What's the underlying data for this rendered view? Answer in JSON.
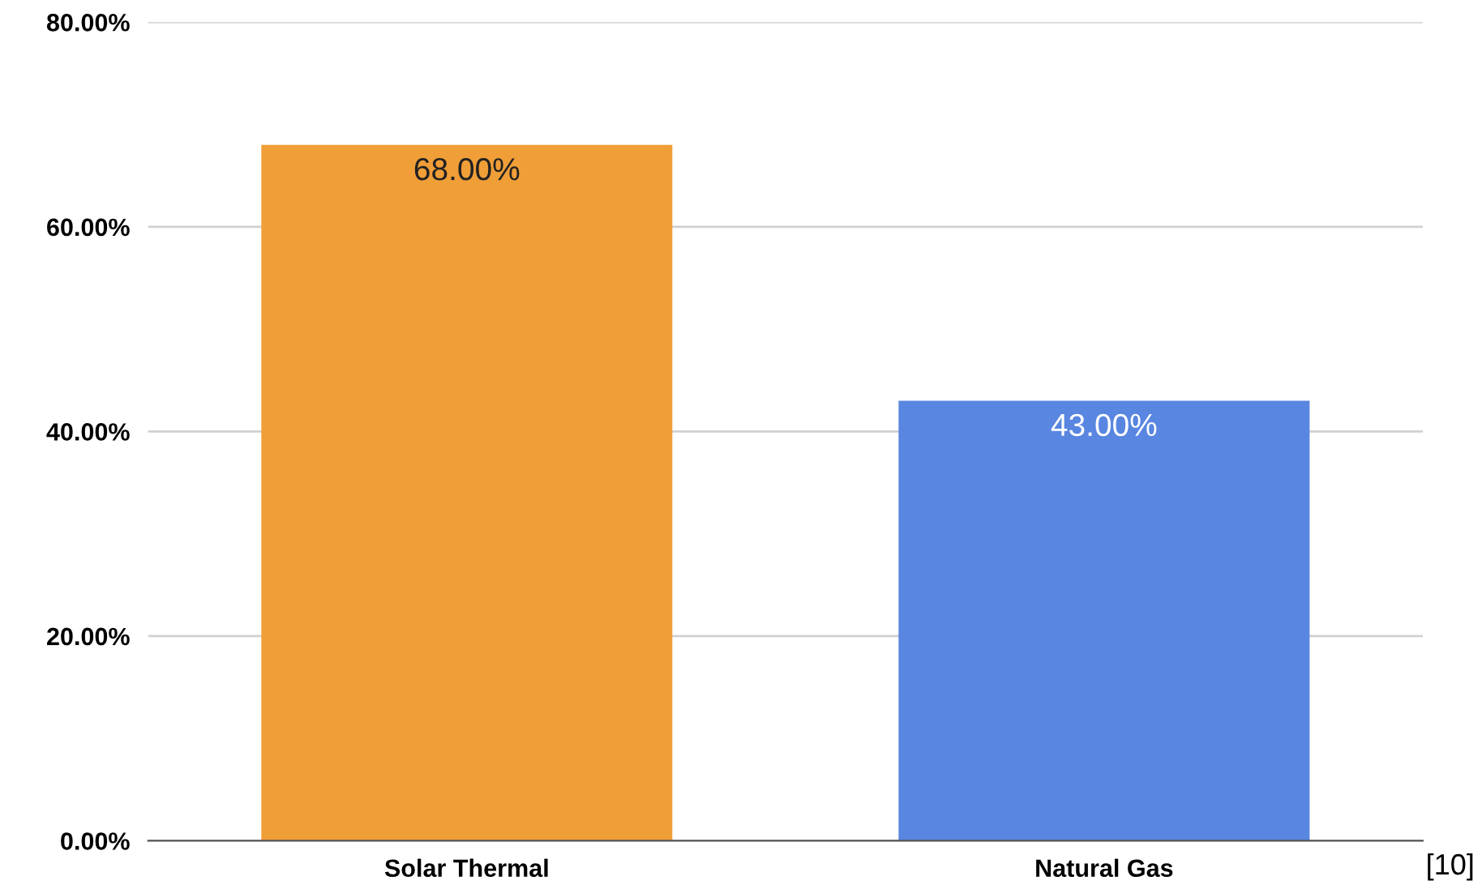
{
  "chart_data": {
    "type": "bar",
    "categories": [
      "Solar Thermal",
      "Natural Gas"
    ],
    "values": [
      68,
      43
    ],
    "colors": [
      "#f09e38",
      "#5886e0"
    ],
    "value_labels": [
      "68.00%",
      "43.00%"
    ],
    "ylim": [
      0,
      80
    ],
    "yticks": [
      {
        "value": 0,
        "label": "0.00%"
      },
      {
        "value": 20,
        "label": "20.00%"
      },
      {
        "value": 40,
        "label": "40.00%"
      },
      {
        "value": 60,
        "label": "60.00%"
      },
      {
        "value": 80,
        "label": "80.00%"
      }
    ],
    "grid": "y",
    "legend": false,
    "annotations": [
      "[10]"
    ]
  }
}
